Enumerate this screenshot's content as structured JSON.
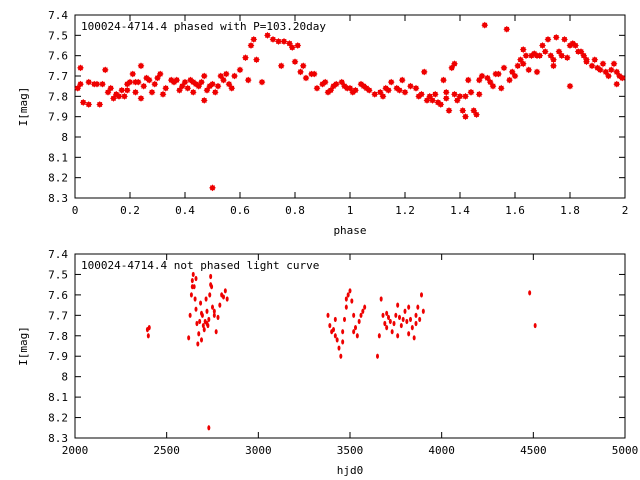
{
  "chart_data": [
    {
      "type": "scatter",
      "title": "100024-4714.4 phased with P=103.20day",
      "xlabel": "phase",
      "ylabel": "I[mag]",
      "xlim": [
        0,
        2
      ],
      "ylim": [
        7.4,
        8.3
      ],
      "y_inverted": true,
      "xticks": [
        "0",
        "0.2",
        "0.4",
        "0.6",
        "0.8",
        "1",
        "1.2",
        "1.4",
        "1.6",
        "1.8",
        "2"
      ],
      "yticks": [
        "7.4",
        "7.5",
        "7.6",
        "7.7",
        "7.8",
        "7.9",
        "8",
        "8.1",
        "8.2",
        "8.3"
      ],
      "marker_color": "#ee0000",
      "series": [
        {
          "x": [
            0.01,
            0.02,
            0.03,
            0.05,
            0.07,
            0.09,
            0.1,
            0.12,
            0.13,
            0.15,
            0.17,
            0.18,
            0.19,
            0.2,
            0.21,
            0.22,
            0.23,
            0.24,
            0.25,
            0.26,
            0.27,
            0.29,
            0.3,
            0.32,
            0.33,
            0.35,
            0.36,
            0.38,
            0.39,
            0.4,
            0.41,
            0.42,
            0.43,
            0.44,
            0.45,
            0.46,
            0.47,
            0.48,
            0.49,
            0.5,
            0.51,
            0.53,
            0.54,
            0.55,
            0.57,
            0.58,
            0.6,
            0.62,
            0.64,
            0.65,
            0.66,
            0.7,
            0.72,
            0.74,
            0.76,
            0.78,
            0.79,
            0.8,
            0.82,
            0.83,
            0.84,
            0.86,
            0.88,
            0.9,
            0.91,
            0.92,
            0.94,
            0.95,
            0.97,
            0.98,
            1.0,
            1.01,
            1.02,
            1.04,
            1.06,
            1.07,
            1.09,
            1.11,
            1.12,
            1.14,
            1.15,
            1.17,
            1.19,
            1.2,
            1.22,
            1.24,
            1.26,
            1.28,
            1.29,
            1.31,
            1.32,
            1.33,
            1.34,
            1.35,
            1.36,
            1.37,
            1.38,
            1.39,
            1.4,
            1.41,
            1.42,
            1.43,
            1.44,
            1.45,
            1.46,
            1.47,
            1.48,
            1.5,
            1.51,
            1.52,
            1.53,
            1.55,
            1.56,
            1.58,
            1.59,
            1.6,
            1.61,
            1.62,
            1.63,
            1.64,
            1.65,
            1.66,
            1.67,
            1.68,
            1.69,
            1.7,
            1.71,
            1.72,
            1.73,
            1.74,
            1.75,
            1.76,
            1.77,
            1.78,
            1.79,
            1.8,
            1.81,
            1.82,
            1.83,
            1.84,
            1.85,
            1.86,
            1.88,
            1.89,
            1.9,
            1.92,
            1.93,
            1.94,
            1.95,
            1.96,
            1.97,
            1.98,
            1.99,
            0.02,
            0.05,
            0.08,
            0.11,
            0.14,
            0.16,
            0.19,
            0.22,
            0.24,
            0.28,
            0.31,
            0.37,
            0.43,
            0.47,
            0.52,
            0.56,
            0.63,
            0.68,
            0.75,
            0.81,
            0.87,
            0.93,
            0.99,
            1.05,
            1.13,
            1.18,
            1.25,
            1.27,
            1.3,
            1.35,
            1.38,
            1.42,
            1.44,
            1.47,
            1.49,
            1.54,
            1.57,
            1.63,
            1.68,
            1.74,
            1.8,
            1.86,
            1.91,
            1.97,
            0.5
          ],
          "y": [
            7.76,
            7.66,
            7.83,
            7.84,
            7.74,
            7.84,
            7.74,
            7.78,
            7.76,
            7.79,
            7.77,
            7.8,
            7.77,
            7.73,
            7.69,
            7.78,
            7.73,
            7.65,
            7.75,
            7.71,
            7.72,
            7.74,
            7.71,
            7.79,
            7.76,
            7.72,
            7.73,
            7.77,
            7.75,
            7.73,
            7.76,
            7.72,
            7.78,
            7.74,
            7.75,
            7.73,
            7.7,
            7.77,
            7.75,
            7.74,
            7.78,
            7.7,
            7.72,
            7.69,
            7.76,
            7.7,
            7.67,
            7.61,
            7.55,
            7.52,
            7.62,
            7.5,
            7.52,
            7.53,
            7.53,
            7.54,
            7.56,
            7.63,
            7.68,
            7.65,
            7.71,
            7.69,
            7.76,
            7.74,
            7.73,
            7.78,
            7.75,
            7.74,
            7.73,
            7.75,
            7.76,
            7.78,
            7.77,
            7.74,
            7.76,
            7.77,
            7.79,
            7.78,
            7.8,
            7.77,
            7.73,
            7.76,
            7.72,
            7.78,
            7.75,
            7.76,
            7.79,
            7.82,
            7.8,
            7.79,
            7.83,
            7.84,
            7.72,
            7.81,
            7.87,
            7.66,
            7.79,
            7.82,
            7.8,
            7.87,
            7.9,
            7.72,
            7.78,
            7.87,
            7.89,
            7.79,
            7.7,
            7.71,
            7.73,
            7.75,
            7.69,
            7.76,
            7.66,
            7.72,
            7.68,
            7.7,
            7.65,
            7.62,
            7.64,
            7.6,
            7.67,
            7.6,
            7.59,
            7.6,
            7.6,
            7.55,
            7.58,
            7.52,
            7.6,
            7.65,
            7.51,
            7.58,
            7.6,
            7.52,
            7.61,
            7.55,
            7.54,
            7.55,
            7.58,
            7.58,
            7.6,
            7.62,
            7.65,
            7.62,
            7.66,
            7.64,
            7.68,
            7.7,
            7.67,
            7.64,
            7.68,
            7.7,
            7.71,
            7.74,
            7.73,
            7.74,
            7.67,
            7.81,
            7.8,
            7.74,
            7.73,
            7.81,
            7.78,
            7.69,
            7.72,
            7.73,
            7.82,
            7.75,
            7.74,
            7.72,
            7.73,
            7.65,
            7.55,
            7.69,
            7.77,
            7.76,
            7.75,
            7.76,
            7.77,
            7.8,
            7.68,
            7.82,
            7.78,
            7.64,
            7.8,
            7.78,
            7.72,
            7.45,
            7.69,
            7.47,
            7.57,
            7.68,
            7.62,
            7.75,
            7.63,
            7.67,
            7.74,
            8.25
          ]
        }
      ]
    },
    {
      "type": "scatter",
      "title": "100024-4714.4 not phased light curve",
      "xlabel": "hjd0",
      "ylabel": "I[mag]",
      "xlim": [
        2000,
        5000
      ],
      "ylim": [
        7.4,
        8.3
      ],
      "y_inverted": true,
      "xticks": [
        "2000",
        "2500",
        "3000",
        "3500",
        "4000",
        "4500",
        "5000"
      ],
      "yticks": [
        "7.4",
        "7.5",
        "7.6",
        "7.7",
        "7.8",
        "7.9",
        "8",
        "8.1",
        "8.2",
        "8.3"
      ],
      "marker_color": "#ee0000",
      "series": [
        {
          "x": [
            2395,
            2400,
            2405,
            2620,
            2628,
            2635,
            2640,
            2645,
            2650,
            2655,
            2660,
            2665,
            2670,
            2675,
            2680,
            2685,
            2690,
            2695,
            2700,
            2705,
            2710,
            2715,
            2720,
            2725,
            2730,
            2735,
            2740,
            2745,
            2750,
            2760,
            2770,
            2780,
            2790,
            2800,
            2810,
            2820,
            2830,
            3380,
            3390,
            3400,
            3410,
            3420,
            3430,
            3440,
            3450,
            3460,
            3470,
            3480,
            3490,
            3500,
            3510,
            3520,
            3530,
            3540,
            3550,
            3560,
            3570,
            3580,
            3650,
            3660,
            3670,
            3680,
            3690,
            3700,
            3710,
            3720,
            3730,
            3740,
            3750,
            3760,
            3770,
            3780,
            3790,
            3800,
            3810,
            3820,
            3830,
            3840,
            3850,
            3860,
            3870,
            3880,
            3890,
            3900,
            4480,
            4510,
            2640,
            2660,
            2690,
            2720,
            2740,
            2760,
            3420,
            3460,
            3480,
            3520,
            3700,
            3760,
            3820,
            3860,
            2730
          ],
          "y": [
            7.77,
            7.8,
            7.76,
            7.81,
            7.7,
            7.6,
            7.53,
            7.5,
            7.56,
            7.62,
            7.67,
            7.74,
            7.84,
            7.79,
            7.73,
            7.64,
            7.69,
            7.7,
            7.75,
            7.77,
            7.73,
            7.62,
            7.68,
            7.75,
            7.72,
            7.6,
            7.51,
            7.56,
            7.66,
            7.7,
            7.78,
            7.71,
            7.65,
            7.6,
            7.61,
            7.58,
            7.62,
            7.7,
            7.75,
            7.78,
            7.77,
            7.8,
            7.82,
            7.86,
            7.9,
            7.78,
            7.72,
            7.66,
            7.6,
            7.58,
            7.63,
            7.7,
            7.76,
            7.8,
            7.73,
            7.7,
            7.68,
            7.66,
            7.9,
            7.8,
            7.62,
            7.7,
            7.74,
            7.76,
            7.71,
            7.73,
            7.78,
            7.74,
            7.7,
            7.65,
            7.71,
            7.75,
            7.72,
            7.68,
            7.73,
            7.79,
            7.72,
            7.76,
            7.81,
            7.7,
            7.66,
            7.72,
            7.6,
            7.68,
            7.59,
            7.75,
            7.56,
            7.52,
            7.82,
            7.74,
            7.55,
            7.68,
            7.72,
            7.83,
            7.62,
            7.78,
            7.69,
            7.8,
            7.66,
            7.74,
            8.25
          ]
        }
      ]
    }
  ]
}
